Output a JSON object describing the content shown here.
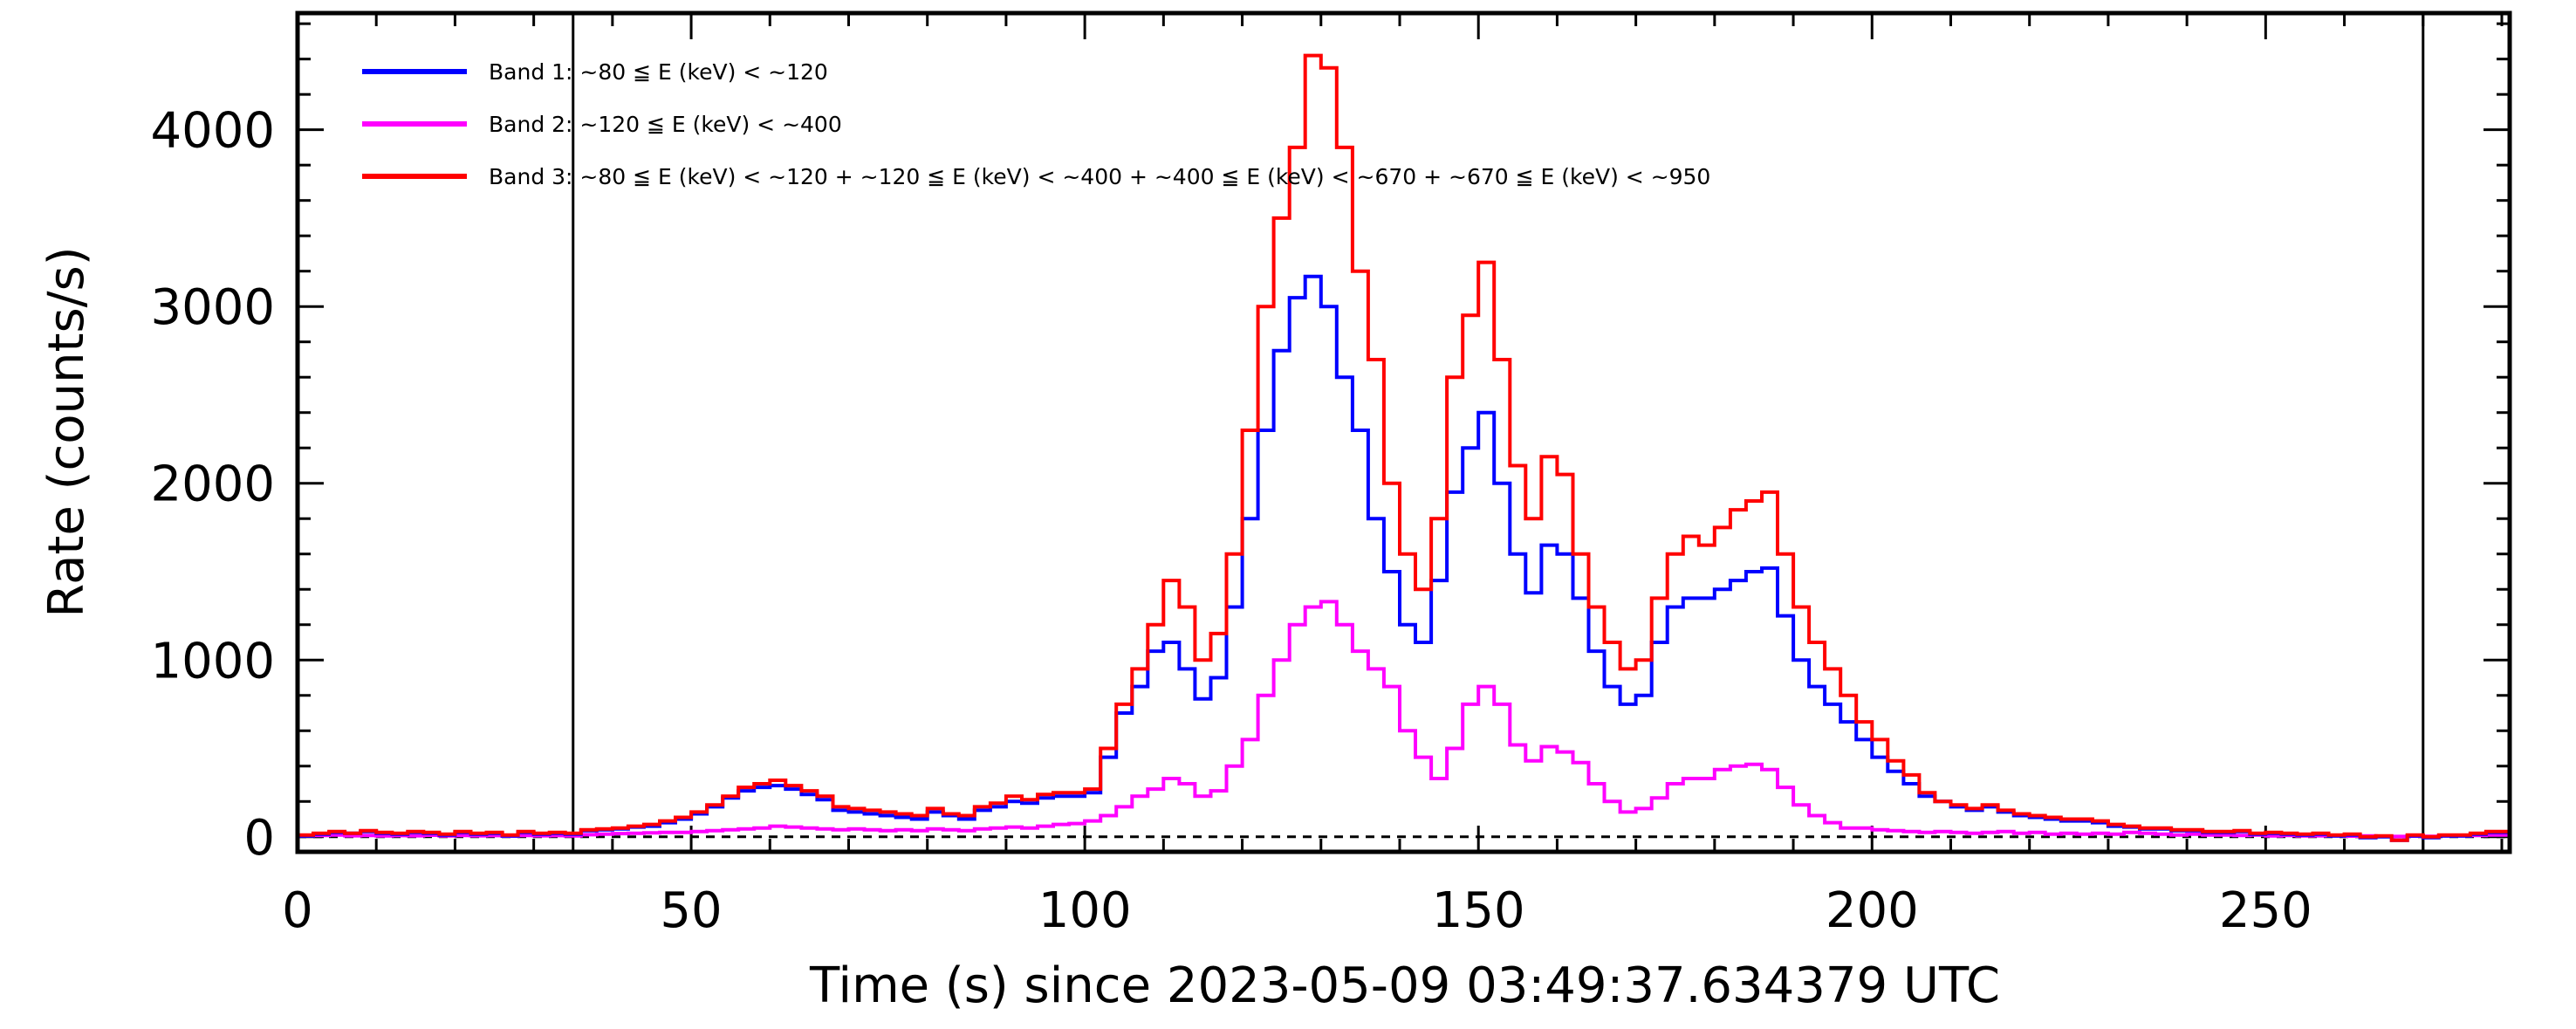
{
  "chart_data": {
    "type": "line",
    "step": true,
    "title": "",
    "xlabel": "Time (s) since 2023-05-09 03:49:37.634379 UTC",
    "ylabel": "Rate (counts/s)",
    "xlim": [
      0,
      281
    ],
    "ylim": [
      -85,
      4660
    ],
    "xticks": [
      0,
      50,
      100,
      150,
      200,
      250
    ],
    "xtick_labels": [
      "0",
      "50",
      "100",
      "150",
      "200",
      "250"
    ],
    "yticks": [
      0,
      1000,
      2000,
      3000,
      4000
    ],
    "ytick_labels": [
      "0",
      "1000",
      "2000",
      "3000",
      "4000"
    ],
    "vertical_lines": [
      35,
      270
    ],
    "zero_line": "dashed",
    "legend_position": "top-left",
    "x": [
      0,
      2,
      4,
      6,
      8,
      10,
      12,
      14,
      16,
      18,
      20,
      22,
      24,
      26,
      28,
      30,
      32,
      34,
      36,
      38,
      40,
      42,
      44,
      46,
      48,
      50,
      52,
      54,
      56,
      58,
      60,
      62,
      64,
      66,
      68,
      70,
      72,
      74,
      76,
      78,
      80,
      82,
      84,
      86,
      88,
      90,
      92,
      94,
      96,
      98,
      100,
      102,
      104,
      106,
      108,
      110,
      112,
      114,
      116,
      118,
      120,
      122,
      124,
      126,
      128,
      130,
      132,
      134,
      136,
      138,
      140,
      142,
      144,
      146,
      148,
      150,
      152,
      154,
      156,
      158,
      160,
      162,
      164,
      166,
      168,
      170,
      172,
      174,
      176,
      178,
      180,
      182,
      184,
      186,
      188,
      190,
      192,
      194,
      196,
      198,
      200,
      202,
      204,
      206,
      208,
      210,
      212,
      214,
      216,
      218,
      220,
      222,
      224,
      226,
      228,
      230,
      232,
      234,
      236,
      238,
      240,
      242,
      244,
      246,
      248,
      250,
      252,
      254,
      256,
      258,
      260,
      262,
      264,
      266,
      268,
      270,
      272,
      274,
      276,
      278,
      280
    ],
    "series": [
      {
        "name": "Band 1: ~80 ≦ E (keV) < ~120",
        "color": "#0000ff",
        "values": [
          5,
          15,
          25,
          20,
          30,
          20,
          15,
          25,
          20,
          10,
          25,
          15,
          20,
          5,
          25,
          15,
          20,
          15,
          35,
          40,
          45,
          55,
          60,
          80,
          100,
          130,
          170,
          220,
          260,
          280,
          290,
          270,
          240,
          210,
          150,
          140,
          130,
          120,
          110,
          100,
          140,
          120,
          100,
          150,
          170,
          200,
          190,
          220,
          230,
          230,
          250,
          450,
          700,
          850,
          1050,
          1100,
          950,
          780,
          900,
          1300,
          1800,
          2300,
          2750,
          3050,
          3170,
          3000,
          2600,
          2300,
          1800,
          1500,
          1200,
          1100,
          1450,
          1950,
          2200,
          2400,
          2000,
          1600,
          1380,
          1650,
          1600,
          1350,
          1050,
          850,
          750,
          800,
          1100,
          1300,
          1350,
          1350,
          1400,
          1450,
          1500,
          1520,
          1250,
          1000,
          850,
          750,
          650,
          550,
          450,
          370,
          300,
          230,
          200,
          170,
          150,
          170,
          140,
          120,
          110,
          100,
          90,
          90,
          80,
          60,
          55,
          45,
          45,
          35,
          35,
          25,
          25,
          30,
          15,
          20,
          15,
          10,
          15,
          5,
          10,
          -5,
          0,
          -20,
          5,
          -5,
          5,
          5,
          15,
          25,
          25
        ]
      },
      {
        "name": "Band 2: ~120 ≦ E (keV) < ~400",
        "color": "#ff00ff",
        "values": [
          5,
          8,
          10,
          6,
          8,
          5,
          7,
          6,
          9,
          5,
          8,
          6,
          7,
          4,
          8,
          6,
          7,
          5,
          12,
          15,
          18,
          20,
          22,
          25,
          25,
          30,
          35,
          40,
          45,
          50,
          60,
          55,
          50,
          45,
          40,
          45,
          40,
          35,
          40,
          35,
          45,
          40,
          35,
          45,
          50,
          55,
          50,
          60,
          70,
          75,
          90,
          120,
          170,
          230,
          270,
          330,
          300,
          230,
          260,
          400,
          550,
          800,
          1000,
          1200,
          1300,
          1330,
          1200,
          1050,
          950,
          850,
          600,
          450,
          330,
          500,
          750,
          850,
          750,
          520,
          430,
          510,
          480,
          420,
          300,
          200,
          140,
          160,
          220,
          300,
          330,
          330,
          380,
          400,
          410,
          380,
          280,
          180,
          120,
          80,
          50,
          50,
          40,
          35,
          30,
          25,
          30,
          25,
          20,
          25,
          30,
          20,
          25,
          15,
          20,
          15,
          20,
          15,
          25,
          20,
          15,
          10,
          15,
          10,
          10,
          8,
          10,
          5,
          8,
          5,
          6,
          5,
          4,
          5,
          3,
          2,
          4,
          3,
          5,
          5,
          8,
          10,
          10
        ]
      },
      {
        "name": "Band 3: ~80 ≦ E (keV) < ~120 + ~120 ≦ E (keV) < ~400 + ~400 ≦ E (keV) < ~670 + ~670 ≦ E (keV) < ~950",
        "color": "#ff0000",
        "values": [
          10,
          20,
          30,
          20,
          35,
          25,
          20,
          30,
          25,
          15,
          30,
          20,
          25,
          10,
          30,
          20,
          25,
          20,
          40,
          45,
          50,
          60,
          70,
          90,
          110,
          140,
          180,
          230,
          280,
          300,
          320,
          290,
          260,
          230,
          170,
          160,
          150,
          140,
          130,
          120,
          160,
          130,
          120,
          170,
          190,
          230,
          210,
          240,
          250,
          250,
          270,
          500,
          750,
          950,
          1200,
          1450,
          1300,
          1000,
          1150,
          1600,
          2300,
          3000,
          3500,
          3900,
          4420,
          4350,
          3900,
          3200,
          2700,
          2000,
          1600,
          1400,
          1800,
          2600,
          2950,
          3250,
          2700,
          2100,
          1800,
          2150,
          2050,
          1600,
          1300,
          1100,
          950,
          1000,
          1350,
          1600,
          1700,
          1650,
          1750,
          1850,
          1900,
          1950,
          1600,
          1300,
          1100,
          950,
          800,
          650,
          550,
          430,
          350,
          250,
          200,
          180,
          160,
          180,
          150,
          130,
          120,
          110,
          100,
          100,
          90,
          70,
          60,
          50,
          50,
          40,
          40,
          30,
          30,
          35,
          20,
          25,
          20,
          15,
          20,
          10,
          15,
          0,
          5,
          -20,
          10,
          0,
          10,
          10,
          20,
          30,
          30
        ]
      }
    ]
  }
}
